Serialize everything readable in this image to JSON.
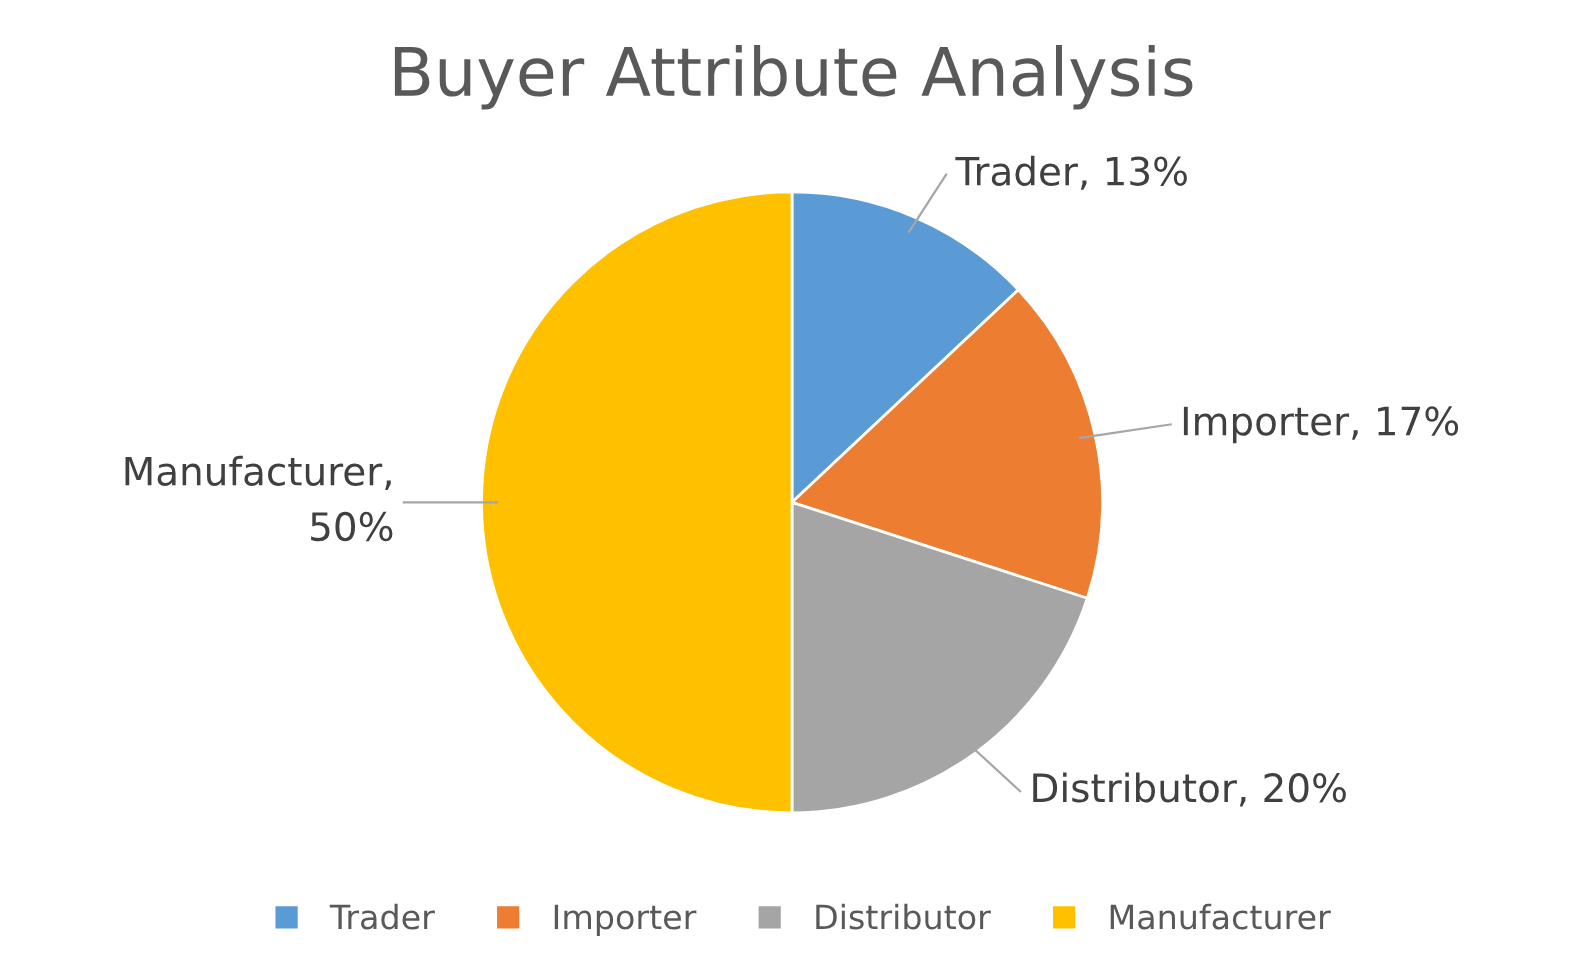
{
  "chart_data": {
    "type": "pie",
    "title": "Buyer Attribute Analysis",
    "categories": [
      "Trader",
      "Importer",
      "Distributor",
      "Manufacturer"
    ],
    "values": [
      13,
      17,
      20,
      50
    ],
    "colors": [
      "#5b9bd5",
      "#ed7d31",
      "#a5a5a5",
      "#ffc000"
    ],
    "value_labels": [
      "Trader, 13%",
      "Importer, 17%",
      "Distributor, 20%",
      "Manufacturer,\n50%"
    ],
    "legend": "bottom"
  }
}
